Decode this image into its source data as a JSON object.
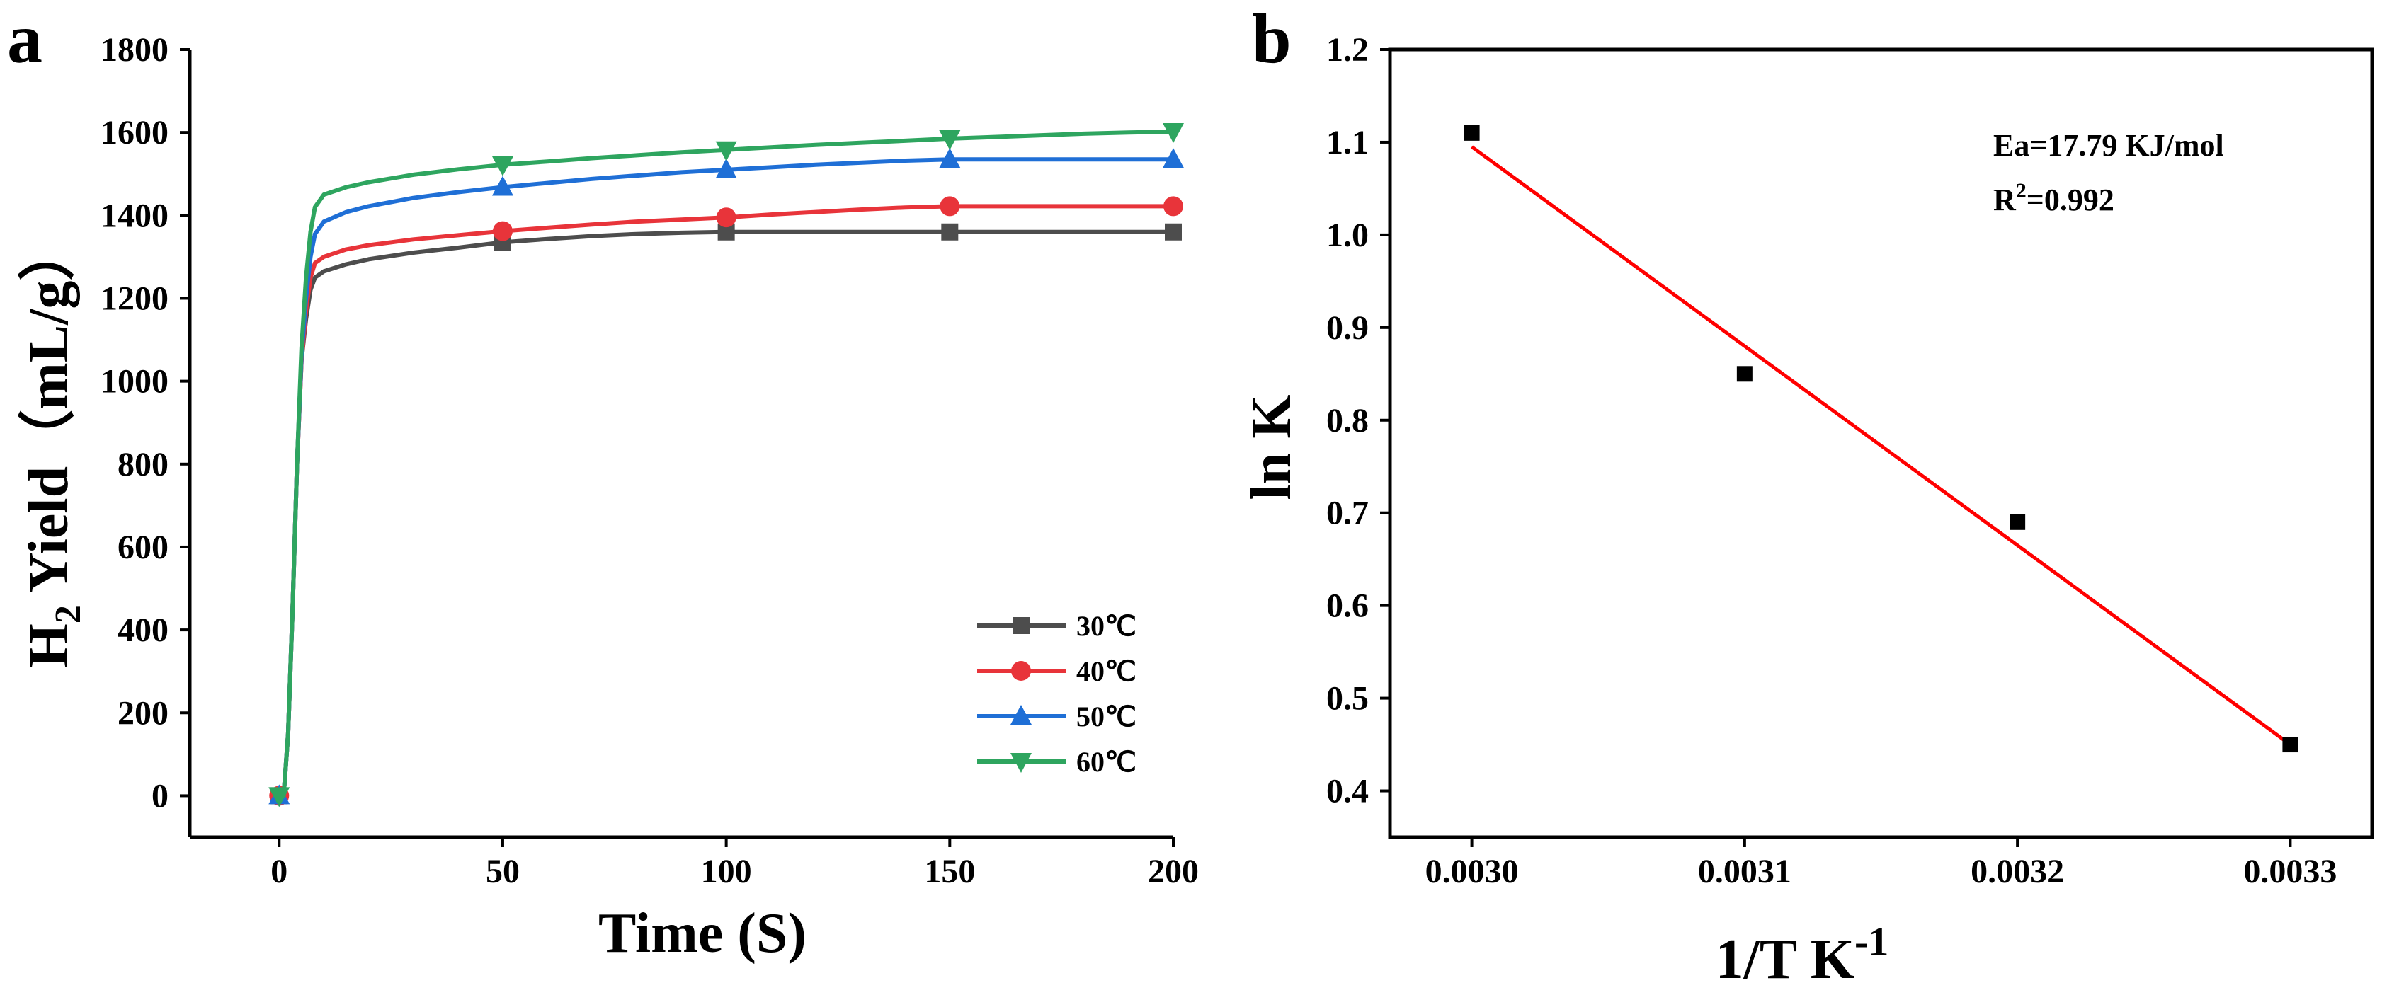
{
  "chart_data": [
    {
      "panel": "a",
      "type": "line",
      "xlabel": "Time (S)",
      "ylabel_main": "H",
      "ylabel_sub": "2",
      "ylabel_rest": " Yield（mL/g）",
      "xlim": [
        -20,
        200
      ],
      "ylim": [
        -100,
        1800
      ],
      "xticks": [
        0,
        50,
        100,
        150,
        200
      ],
      "yticks": [
        0,
        200,
        400,
        600,
        800,
        1000,
        1200,
        1400,
        1600,
        1800
      ],
      "series": [
        {
          "name": "30℃",
          "color": "#4d4d4d",
          "marker": "square",
          "x": [
            0,
            50,
            100,
            150,
            200
          ],
          "y": [
            0,
            1335,
            1360,
            1360,
            1360
          ],
          "curve": [
            [
              0,
              0
            ],
            [
              1,
              0
            ],
            [
              2,
              150
            ],
            [
              3,
              450
            ],
            [
              4,
              800
            ],
            [
              5,
              1050
            ],
            [
              6,
              1150
            ],
            [
              7,
              1220
            ],
            [
              8,
              1250
            ],
            [
              10,
              1265
            ],
            [
              15,
              1282
            ],
            [
              20,
              1294
            ],
            [
              30,
              1310
            ],
            [
              40,
              1322
            ],
            [
              50,
              1335
            ],
            [
              60,
              1343
            ],
            [
              70,
              1350
            ],
            [
              80,
              1355
            ],
            [
              90,
              1358
            ],
            [
              100,
              1360
            ],
            [
              150,
              1360
            ],
            [
              200,
              1360
            ]
          ]
        },
        {
          "name": "40℃",
          "color": "#e8343a",
          "marker": "circle",
          "x": [
            0,
            50,
            100,
            150,
            200
          ],
          "y": [
            0,
            1362,
            1395,
            1422,
            1422
          ],
          "curve": [
            [
              0,
              0
            ],
            [
              1,
              0
            ],
            [
              2,
              150
            ],
            [
              3,
              450
            ],
            [
              4,
              800
            ],
            [
              5,
              1050
            ],
            [
              6,
              1170
            ],
            [
              7,
              1250
            ],
            [
              8,
              1285
            ],
            [
              10,
              1300
            ],
            [
              15,
              1318
            ],
            [
              20,
              1328
            ],
            [
              30,
              1342
            ],
            [
              40,
              1352
            ],
            [
              50,
              1362
            ],
            [
              60,
              1370
            ],
            [
              70,
              1378
            ],
            [
              80,
              1385
            ],
            [
              90,
              1390
            ],
            [
              100,
              1395
            ],
            [
              110,
              1402
            ],
            [
              120,
              1408
            ],
            [
              130,
              1414
            ],
            [
              140,
              1419
            ],
            [
              150,
              1422
            ],
            [
              200,
              1422
            ]
          ]
        },
        {
          "name": "50℃",
          "color": "#1f6fd6",
          "marker": "triangle-up",
          "x": [
            0,
            50,
            100,
            150,
            200
          ],
          "y": [
            0,
            1468,
            1510,
            1535,
            1535
          ],
          "curve": [
            [
              0,
              0
            ],
            [
              1,
              0
            ],
            [
              2,
              150
            ],
            [
              3,
              450
            ],
            [
              4,
              800
            ],
            [
              5,
              1060
            ],
            [
              6,
              1200
            ],
            [
              7,
              1300
            ],
            [
              8,
              1355
            ],
            [
              10,
              1385
            ],
            [
              15,
              1408
            ],
            [
              20,
              1422
            ],
            [
              30,
              1442
            ],
            [
              40,
              1456
            ],
            [
              50,
              1468
            ],
            [
              60,
              1478
            ],
            [
              70,
              1488
            ],
            [
              80,
              1496
            ],
            [
              90,
              1504
            ],
            [
              100,
              1510
            ],
            [
              110,
              1516
            ],
            [
              120,
              1522
            ],
            [
              130,
              1527
            ],
            [
              140,
              1532
            ],
            [
              150,
              1535
            ],
            [
              200,
              1535
            ]
          ]
        },
        {
          "name": "60℃",
          "color": "#2ea55f",
          "marker": "triangle-down",
          "x": [
            0,
            50,
            100,
            150,
            200
          ],
          "y": [
            0,
            1522,
            1558,
            1585,
            1602
          ],
          "curve": [
            [
              0,
              0
            ],
            [
              1,
              0
            ],
            [
              2,
              150
            ],
            [
              3,
              450
            ],
            [
              4,
              800
            ],
            [
              5,
              1080
            ],
            [
              6,
              1250
            ],
            [
              7,
              1360
            ],
            [
              8,
              1420
            ],
            [
              10,
              1450
            ],
            [
              15,
              1468
            ],
            [
              20,
              1480
            ],
            [
              30,
              1498
            ],
            [
              40,
              1511
            ],
            [
              50,
              1522
            ],
            [
              60,
              1530
            ],
            [
              70,
              1538
            ],
            [
              80,
              1545
            ],
            [
              90,
              1552
            ],
            [
              100,
              1558
            ],
            [
              110,
              1564
            ],
            [
              120,
              1570
            ],
            [
              130,
              1575
            ],
            [
              140,
              1580
            ],
            [
              150,
              1585
            ],
            [
              160,
              1589
            ],
            [
              170,
              1593
            ],
            [
              180,
              1597
            ],
            [
              190,
              1600
            ],
            [
              200,
              1602
            ]
          ]
        }
      ],
      "legend_position": "bottom-right"
    },
    {
      "panel": "b",
      "type": "scatter",
      "xlabel_main": "1/T K",
      "xlabel_sup": "-1",
      "ylabel": "ln K",
      "xlim": [
        0.00297,
        0.00333
      ],
      "ylim": [
        0.35,
        1.2
      ],
      "xticks": [
        "0.0030",
        "0.0031",
        "0.0032",
        "0.0033"
      ],
      "xtick_values": [
        0.003,
        0.0031,
        0.0032,
        0.0033
      ],
      "yticks": [
        "0.4",
        "0.5",
        "0.6",
        "0.7",
        "0.8",
        "0.9",
        "1.0",
        "1.1",
        "1.2"
      ],
      "ytick_values": [
        0.4,
        0.5,
        0.6,
        0.7,
        0.8,
        0.9,
        1.0,
        1.1,
        1.2
      ],
      "points": {
        "x": [
          0.003,
          0.0031,
          0.0032,
          0.0033
        ],
        "y": [
          1.11,
          0.85,
          0.69,
          0.45
        ],
        "color": "#000000",
        "marker": "square"
      },
      "fit_line": {
        "x": [
          0.003,
          0.0033
        ],
        "y": [
          1.095,
          0.45
        ],
        "color": "#ff0000"
      },
      "annotation_ea": "Ea=17.79 KJ/mol",
      "annotation_r2_main": "R",
      "annotation_r2_sup": "2",
      "annotation_r2_rest": "=0.992"
    }
  ]
}
